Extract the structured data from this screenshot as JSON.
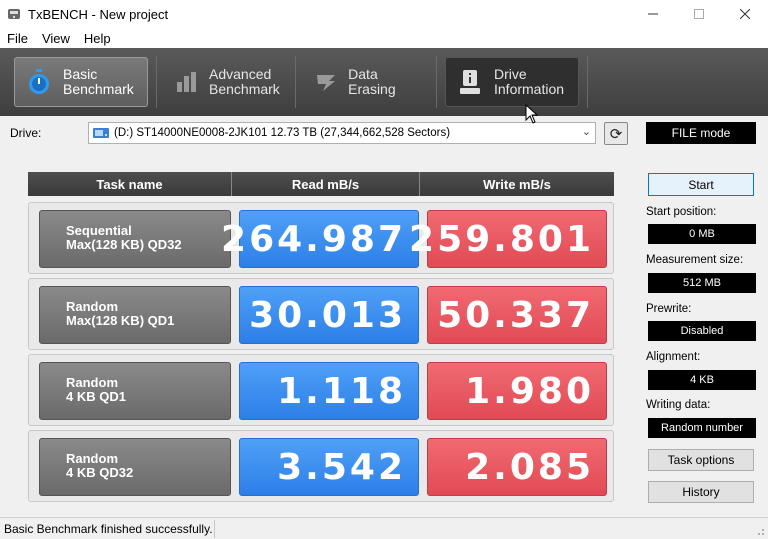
{
  "window": {
    "title": "TxBENCH - New project",
    "app_icon": "txbench-icon",
    "controls": [
      "minimize-icon",
      "maximize-icon",
      "close-icon"
    ]
  },
  "menu": {
    "items": [
      "File",
      "View",
      "Help"
    ]
  },
  "toolbar": {
    "tabs": [
      {
        "line1": "Basic",
        "line2": "Benchmark",
        "icon": "stopwatch-icon",
        "active": true
      },
      {
        "line1": "Advanced",
        "line2": "Benchmark",
        "icon": "bar-chart-icon",
        "active": false
      },
      {
        "line1": "Data Erasing",
        "line2": "",
        "icon": "erase-icon",
        "active": false
      },
      {
        "line1": "Drive",
        "line2": "Information",
        "icon": "drive-info-icon",
        "active": false
      }
    ]
  },
  "drive": {
    "label": "Drive:",
    "selected": "(D:) ST14000NE0008-2JK101  12.73 TB (27,344,662,528 Sectors)",
    "icon": "drive-icon",
    "refresh_icon": "refresh-icon"
  },
  "results": {
    "headers": {
      "task": "Task name",
      "read": "Read mB/s",
      "write": "Write mB/s"
    },
    "rows": [
      {
        "task1": "Sequential",
        "task2": "Max(128 KB) QD32",
        "read": "264.987",
        "write": "259.801"
      },
      {
        "task1": "Random",
        "task2": "Max(128 KB) QD1",
        "read": "30.013",
        "write": "50.337"
      },
      {
        "task1": "Random",
        "task2": "4 KB QD1",
        "read": "1.118",
        "write": "1.980"
      },
      {
        "task1": "Random",
        "task2": "4 KB QD32",
        "read": "3.542",
        "write": "2.085"
      }
    ]
  },
  "side": {
    "mode": "FILE mode",
    "start_label": "Start",
    "start_position_label": "Start position:",
    "start_position_value": "0 MB",
    "measurement_size_label": "Measurement size:",
    "measurement_size_value": "512 MB",
    "prewrite_label": "Prewrite:",
    "prewrite_value": "Disabled",
    "alignment_label": "Alignment:",
    "alignment_value": "4 KB",
    "writing_data_label": "Writing data:",
    "writing_data_value": "Random number",
    "task_options_label": "Task options",
    "history_label": "History"
  },
  "status": {
    "message": "Basic Benchmark finished successfully."
  },
  "colors": {
    "read_accent": "#2c7fe8",
    "write_accent": "#e24a54",
    "toolbar_bg": "#4a4a4a"
  }
}
